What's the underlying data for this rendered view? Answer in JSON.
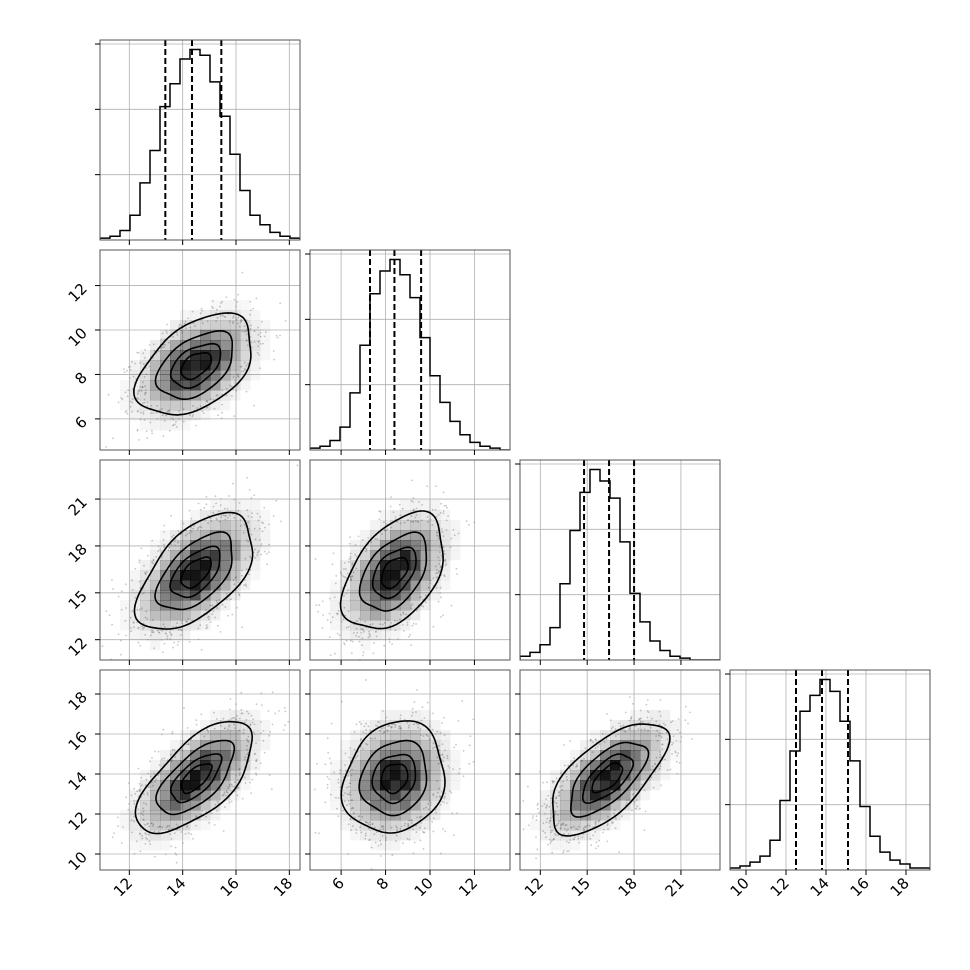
{
  "chart_data": {
    "type": "corner",
    "title": "",
    "grid": true,
    "parameters": [
      {
        "label": "",
        "range": [
          10.9,
          18.4
        ],
        "ticks": [
          12,
          14,
          16,
          18
        ],
        "quantiles": [
          13.35,
          14.35,
          15.45
        ],
        "hist": [
          0.01,
          0.02,
          0.05,
          0.13,
          0.3,
          0.47,
          0.7,
          0.82,
          0.95,
          1.0,
          0.97,
          0.83,
          0.65,
          0.45,
          0.26,
          0.13,
          0.08,
          0.04,
          0.02,
          0.01
        ]
      },
      {
        "label": "",
        "range": [
          4.6,
          13.6
        ],
        "ticks": [
          6,
          8,
          10,
          12
        ],
        "quantiles": [
          7.3,
          8.4,
          9.6
        ],
        "hist": [
          0.01,
          0.02,
          0.05,
          0.12,
          0.3,
          0.55,
          0.82,
          0.94,
          1.0,
          0.92,
          0.8,
          0.59,
          0.39,
          0.25,
          0.15,
          0.08,
          0.04,
          0.02,
          0.01,
          0.0
        ]
      },
      {
        "label": "",
        "range": [
          10.7,
          23.5
        ],
        "ticks": [
          12,
          15,
          18,
          21
        ],
        "quantiles": [
          14.8,
          16.4,
          18.0
        ],
        "hist": [
          0.02,
          0.04,
          0.08,
          0.17,
          0.4,
          0.68,
          0.88,
          1.0,
          0.94,
          0.85,
          0.62,
          0.35,
          0.2,
          0.1,
          0.05,
          0.02,
          0.01,
          0.0,
          0.0,
          0.0
        ]
      },
      {
        "label": "",
        "range": [
          9.2,
          19.2
        ],
        "ticks": [
          10,
          12,
          14,
          16,
          18
        ],
        "quantiles": [
          12.5,
          13.8,
          15.1
        ],
        "hist": [
          0.01,
          0.02,
          0.04,
          0.07,
          0.15,
          0.35,
          0.6,
          0.8,
          0.88,
          0.96,
          0.9,
          0.75,
          0.55,
          0.32,
          0.17,
          0.09,
          0.05,
          0.03,
          0.01,
          0.01
        ]
      }
    ],
    "pairs": [
      {
        "x": 0,
        "y": 1,
        "center": [
          14.5,
          8.4
        ],
        "sd": [
          1.05,
          1.1
        ],
        "rho": 0.45
      },
      {
        "x": 0,
        "y": 2,
        "center": [
          14.5,
          16.3
        ],
        "sd": [
          1.05,
          1.8
        ],
        "rho": 0.55
      },
      {
        "x": 1,
        "y": 2,
        "center": [
          8.4,
          16.3
        ],
        "sd": [
          1.1,
          1.8
        ],
        "rho": 0.45
      },
      {
        "x": 0,
        "y": 3,
        "center": [
          14.5,
          13.8
        ],
        "sd": [
          1.05,
          1.35
        ],
        "rho": 0.65
      },
      {
        "x": 1,
        "y": 3,
        "center": [
          8.4,
          13.8
        ],
        "sd": [
          1.1,
          1.35
        ],
        "rho": 0.15
      },
      {
        "x": 2,
        "y": 3,
        "center": [
          16.3,
          13.8
        ],
        "sd": [
          1.8,
          1.35
        ],
        "rho": 0.65
      }
    ],
    "contour_levels_sigma": [
      0.5,
      1.0,
      1.5,
      2.0
    ],
    "colors": {
      "line": "#000000",
      "grid": "#b0b0b0",
      "points": "#9a9a9a",
      "density": "#000000"
    }
  }
}
